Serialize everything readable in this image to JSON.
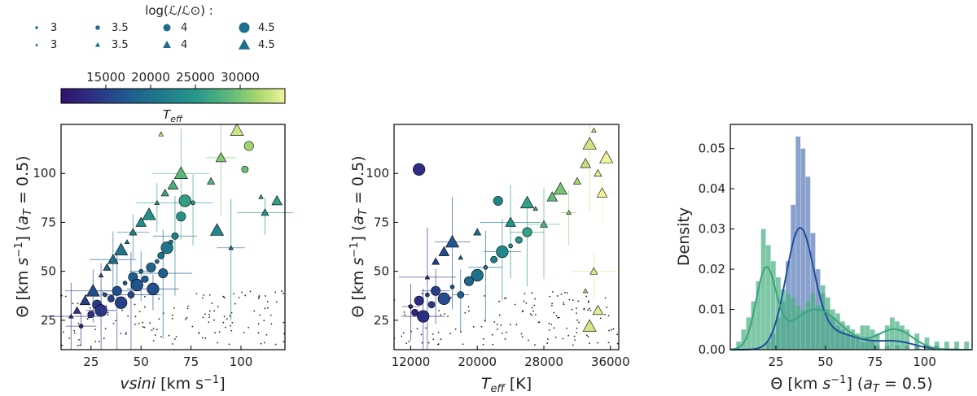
{
  "legend": {
    "title": "log(ℒ/ℒ⊙) :",
    "circles": [
      {
        "label": "3",
        "size": 3
      },
      {
        "label": "3.5",
        "size": 3.5
      },
      {
        "label": "4",
        "size": 4
      },
      {
        "label": "4.5",
        "size": 4.5
      }
    ],
    "triangles": [
      {
        "label": "3",
        "size": 3
      },
      {
        "label": "3.5",
        "size": 3.5
      },
      {
        "label": "4",
        "size": 4
      },
      {
        "label": "4.5",
        "size": 4.5
      }
    ]
  },
  "colorbar": {
    "label": "T_eff",
    "ticks": [
      "15000",
      "20000",
      "25000",
      "30000"
    ],
    "tick_values": [
      15000,
      20000,
      25000,
      30000
    ],
    "range": [
      10000,
      35000
    ],
    "colormap": "viridis-like"
  },
  "chart_data": [
    {
      "type": "scatter",
      "title": "",
      "xlabel": "vsini [km s⁻¹]",
      "ylabel": "Θ [km s⁻¹] (a_T = 0.5)",
      "xticks": [
        "25",
        "50",
        "75",
        "100"
      ],
      "yticks": [
        "25",
        "50",
        "75",
        "100"
      ],
      "xlim": [
        10,
        122
      ],
      "ylim": [
        10,
        125
      ],
      "color_by": "T_eff",
      "size_by": "log(L/Lsun)",
      "series": [
        {
          "marker": "circle",
          "points": [
            [
              20,
              22
            ],
            [
              25,
              28
            ],
            [
              28,
              33
            ],
            [
              30,
              30
            ],
            [
              32,
              38
            ],
            [
              35,
              36
            ],
            [
              38,
              40
            ],
            [
              40,
              34
            ],
            [
              42,
              44
            ],
            [
              45,
              38
            ],
            [
              46,
              47
            ],
            [
              48,
              43
            ],
            [
              50,
              50
            ],
            [
              52,
              46
            ],
            [
              55,
              52
            ],
            [
              56,
              41
            ],
            [
              58,
              55
            ],
            [
              60,
              58
            ],
            [
              61,
              49
            ],
            [
              63,
              62
            ],
            [
              65,
              65
            ],
            [
              67,
              68
            ],
            [
              70,
              78
            ],
            [
              72,
              86
            ],
            [
              76,
              85
            ],
            [
              102,
              102
            ],
            [
              104,
              114
            ]
          ]
        },
        {
          "marker": "triangle",
          "points": [
            [
              15,
              27
            ],
            [
              18,
              30
            ],
            [
              22,
              35
            ],
            [
              26,
              40
            ],
            [
              30,
              48
            ],
            [
              33,
              52
            ],
            [
              36,
              56
            ],
            [
              40,
              61
            ],
            [
              43,
              65
            ],
            [
              46,
              70
            ],
            [
              50,
              75
            ],
            [
              54,
              79
            ],
            [
              58,
              85
            ],
            [
              62,
              90
            ],
            [
              66,
              94
            ],
            [
              70,
              100
            ],
            [
              60,
              120
            ],
            [
              85,
              96
            ],
            [
              90,
              108
            ],
            [
              98,
              122
            ],
            [
              110,
              88
            ],
            [
              112,
              80
            ],
            [
              118,
              86
            ],
            [
              88,
              71
            ],
            [
              95,
              62
            ]
          ]
        }
      ]
    },
    {
      "type": "scatter",
      "title": "",
      "xlabel": "T_eff [K]",
      "ylabel": "Θ [km s⁻¹] (a_T = 0.5)",
      "xticks": [
        "12000",
        "20000",
        "28000",
        "36000"
      ],
      "yticks": [
        "25",
        "50",
        "75",
        "100"
      ],
      "xlim": [
        10000,
        37000
      ],
      "ylim": [
        10,
        125
      ],
      "color_by": "T_eff",
      "size_by": "log(L/Lsun)",
      "series": [
        {
          "marker": "circle",
          "points": [
            [
              12000,
              32
            ],
            [
              12500,
              29
            ],
            [
              13000,
              35
            ],
            [
              13500,
              27
            ],
            [
              14000,
              38
            ],
            [
              14500,
              33
            ],
            [
              15000,
              40
            ],
            [
              16000,
              36
            ],
            [
              17000,
              42
            ],
            [
              18000,
              38
            ],
            [
              19000,
              45
            ],
            [
              20000,
              48
            ],
            [
              21000,
              52
            ],
            [
              22000,
              56
            ],
            [
              22500,
              86
            ],
            [
              23000,
              60
            ],
            [
              24000,
              63
            ],
            [
              25000,
              66
            ],
            [
              26000,
              70
            ],
            [
              13000,
              102
            ]
          ]
        },
        {
          "marker": "triangle",
          "points": [
            [
              14000,
              47
            ],
            [
              15000,
              55
            ],
            [
              16000,
              60
            ],
            [
              17000,
              65
            ],
            [
              18000,
              57
            ],
            [
              20000,
              70
            ],
            [
              24000,
              75
            ],
            [
              26000,
              85
            ],
            [
              27000,
              82
            ],
            [
              28000,
              74
            ],
            [
              29000,
              88
            ],
            [
              30000,
              92
            ],
            [
              31000,
              80
            ],
            [
              32000,
              96
            ],
            [
              33000,
              105
            ],
            [
              33500,
              115
            ],
            [
              34000,
              122
            ],
            [
              34500,
              100
            ],
            [
              35000,
              90
            ],
            [
              35500,
              108
            ],
            [
              33000,
              40
            ],
            [
              34000,
              50
            ],
            [
              34500,
              30
            ],
            [
              33500,
              22
            ]
          ]
        }
      ]
    },
    {
      "type": "histogram",
      "title": "",
      "xlabel": "Θ [km s⁻¹] (a_T = 0.5)",
      "ylabel": "Density",
      "xticks": [
        "25",
        "50",
        "75",
        "100"
      ],
      "yticks": [
        "0.00",
        "0.01",
        "0.02",
        "0.03",
        "0.04",
        "0.05"
      ],
      "xlim": [
        2,
        124
      ],
      "ylim": [
        0,
        0.056
      ],
      "series": [
        {
          "color": "#5b7db8",
          "bin_width": 2.5,
          "bins": [
            [
              20,
              0.002
            ],
            [
              22.5,
              0.004
            ],
            [
              25,
              0.008
            ],
            [
              27.5,
              0.012
            ],
            [
              30,
              0.022
            ],
            [
              32.5,
              0.036
            ],
            [
              35,
              0.053
            ],
            [
              37.5,
              0.05
            ],
            [
              40,
              0.043
            ],
            [
              42.5,
              0.029
            ],
            [
              45,
              0.02
            ],
            [
              47.5,
              0.014
            ],
            [
              50,
              0.01
            ],
            [
              52.5,
              0.008
            ],
            [
              55,
              0.006
            ],
            [
              57.5,
              0.005
            ],
            [
              60,
              0.004
            ],
            [
              62.5,
              0.003
            ],
            [
              65,
              0.003
            ],
            [
              67.5,
              0.002
            ],
            [
              70,
              0.002
            ],
            [
              72.5,
              0.002
            ],
            [
              75,
              0.001
            ],
            [
              80,
              0.001
            ],
            [
              85,
              0.001
            ],
            [
              90,
              0.001
            ],
            [
              95,
              0.001
            ],
            [
              105,
              0.001
            ]
          ]
        },
        {
          "color": "#4bb083",
          "bin_width": 2.5,
          "bins": [
            [
              5,
              0.002
            ],
            [
              7.5,
              0.005
            ],
            [
              10,
              0.008
            ],
            [
              12.5,
              0.012
            ],
            [
              15,
              0.017
            ],
            [
              17.5,
              0.03
            ],
            [
              20,
              0.026
            ],
            [
              22.5,
              0.022
            ],
            [
              25,
              0.018
            ],
            [
              27.5,
              0.015
            ],
            [
              30,
              0.014
            ],
            [
              32.5,
              0.013
            ],
            [
              35,
              0.011
            ],
            [
              37.5,
              0.01
            ],
            [
              40,
              0.012
            ],
            [
              42.5,
              0.014
            ],
            [
              45,
              0.011
            ],
            [
              47.5,
              0.016
            ],
            [
              50,
              0.013
            ],
            [
              52.5,
              0.01
            ],
            [
              55,
              0.009
            ],
            [
              57.5,
              0.007
            ],
            [
              60,
              0.006
            ],
            [
              62.5,
              0.005
            ],
            [
              65,
              0.004
            ],
            [
              67.5,
              0.006
            ],
            [
              70,
              0.006
            ],
            [
              72.5,
              0.005
            ],
            [
              75,
              0.004
            ],
            [
              80,
              0.006
            ],
            [
              82.5,
              0.008
            ],
            [
              85,
              0.007
            ],
            [
              87.5,
              0.006
            ],
            [
              90,
              0.005
            ],
            [
              95,
              0.004
            ],
            [
              100,
              0.003
            ],
            [
              105,
              0.002
            ],
            [
              110,
              0.002
            ],
            [
              115,
              0.002
            ],
            [
              120,
              0.002
            ]
          ]
        }
      ],
      "kde": [
        {
          "color": "#1f4e9e",
          "peaks": [
            {
              "mu": 37,
              "sigma": 7,
              "amp": 0.029
            },
            {
              "mu": 55,
              "sigma": 12,
              "amp": 0.004
            },
            {
              "mu": 85,
              "sigma": 10,
              "amp": 0.002
            }
          ]
        },
        {
          "color": "#3aa37a",
          "peaks": [
            {
              "mu": 20,
              "sigma": 5,
              "amp": 0.019
            },
            {
              "mu": 45,
              "sigma": 13,
              "amp": 0.01
            },
            {
              "mu": 85,
              "sigma": 9,
              "amp": 0.005
            }
          ]
        }
      ]
    }
  ]
}
